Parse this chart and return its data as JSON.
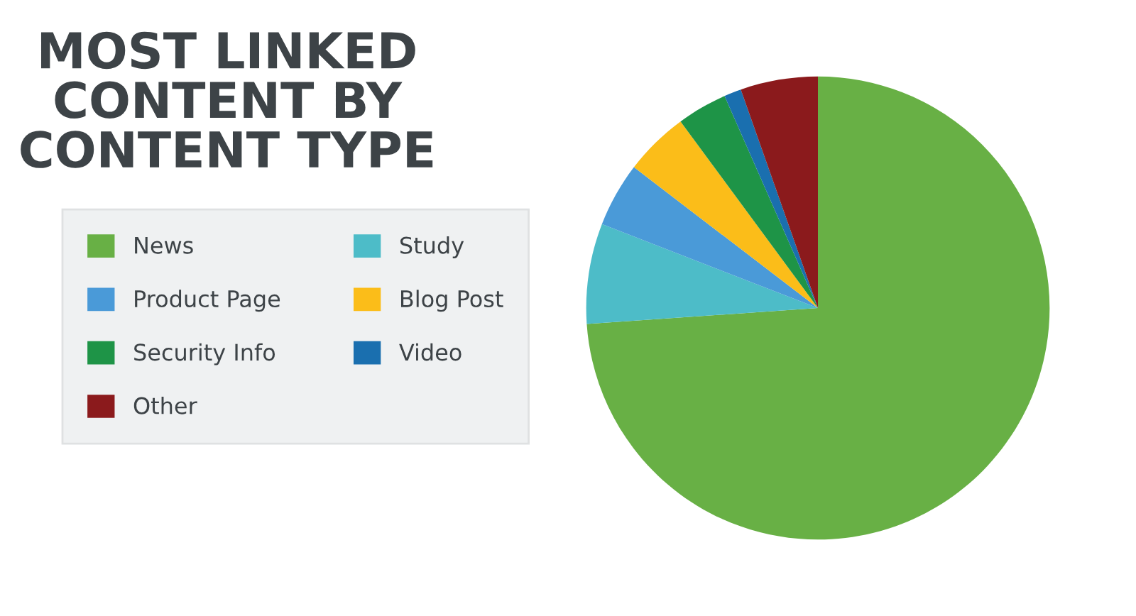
{
  "chart_data": {
    "type": "pie",
    "title": "MOST LINKED\nCONTENT BY\nCONTENT TYPE",
    "categories": [
      "News",
      "Study",
      "Product Page",
      "Blog Post",
      "Security Info",
      "Video",
      "Other"
    ],
    "values": [
      73.9,
      7,
      4.5,
      4.5,
      3.5,
      1.2,
      5.4
    ],
    "colors": [
      "#68b045",
      "#4dbcc8",
      "#4a9ad8",
      "#fbbd19",
      "#1e9447",
      "#1a6faf",
      "#8b1a1c"
    ],
    "legend": "left"
  }
}
